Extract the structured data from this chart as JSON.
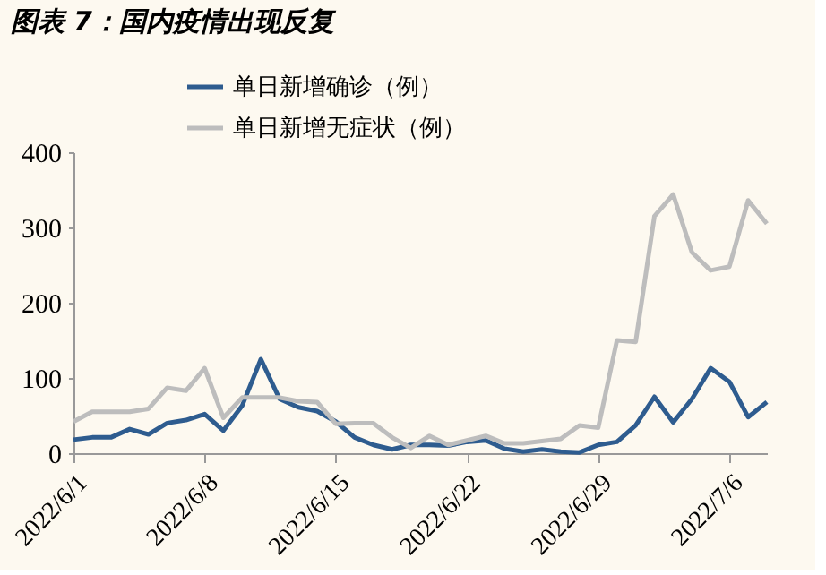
{
  "chart_data": {
    "type": "line",
    "title": "图表 7：国内疫情出现反复",
    "x": [
      "2022-06-01",
      "2022-06-02",
      "2022-06-03",
      "2022-06-04",
      "2022-06-05",
      "2022-06-06",
      "2022-06-07",
      "2022-06-08",
      "2022-06-09",
      "2022-06-10",
      "2022-06-11",
      "2022-06-12",
      "2022-06-13",
      "2022-06-14",
      "2022-06-15",
      "2022-06-16",
      "2022-06-17",
      "2022-06-18",
      "2022-06-19",
      "2022-06-20",
      "2022-06-21",
      "2022-06-22",
      "2022-06-23",
      "2022-06-24",
      "2022-06-25",
      "2022-06-26",
      "2022-06-27",
      "2022-06-28",
      "2022-06-29",
      "2022-06-30",
      "2022-07-01",
      "2022-07-02",
      "2022-07-03",
      "2022-07-04",
      "2022-07-05",
      "2022-07-06",
      "2022-07-07",
      "2022-07-08"
    ],
    "xlim": [
      "2022-06-01",
      "2022-07-08"
    ],
    "xticks": [
      {
        "value": "2022-06-01",
        "label": "2022/6/1"
      },
      {
        "value": "2022-06-08",
        "label": "2022/6/8"
      },
      {
        "value": "2022-06-15",
        "label": "2022/6/15"
      },
      {
        "value": "2022-06-22",
        "label": "2022/6/22"
      },
      {
        "value": "2022-06-29",
        "label": "2022/6/29"
      },
      {
        "value": "2022-07-06",
        "label": "2022/7/6"
      }
    ],
    "series": [
      {
        "name": "单日新增确诊（例）",
        "color": "#2e5c8f",
        "values": [
          18,
          21,
          21,
          32,
          25,
          40,
          44,
          52,
          30,
          63,
          125,
          72,
          61,
          56,
          42,
          21,
          11,
          5,
          11,
          11,
          10,
          15,
          17,
          6,
          2,
          5,
          2,
          1,
          11,
          15,
          37,
          75,
          41,
          72,
          113,
          95,
          48,
          68
        ]
      },
      {
        "name": "单日新增无症状（例）",
        "color": "#bdbdbd",
        "values": [
          42,
          55,
          55,
          55,
          59,
          87,
          83,
          113,
          47,
          74,
          74,
          74,
          69,
          68,
          39,
          40,
          40,
          21,
          7,
          23,
          11,
          17,
          23,
          13,
          13,
          16,
          19,
          37,
          34,
          150,
          148,
          315,
          344,
          267,
          243,
          248,
          336,
          305
        ]
      }
    ],
    "ylim": [
      0,
      400
    ],
    "yticks": [
      0,
      100,
      200,
      300,
      400
    ],
    "grid": false,
    "legend": "top"
  }
}
